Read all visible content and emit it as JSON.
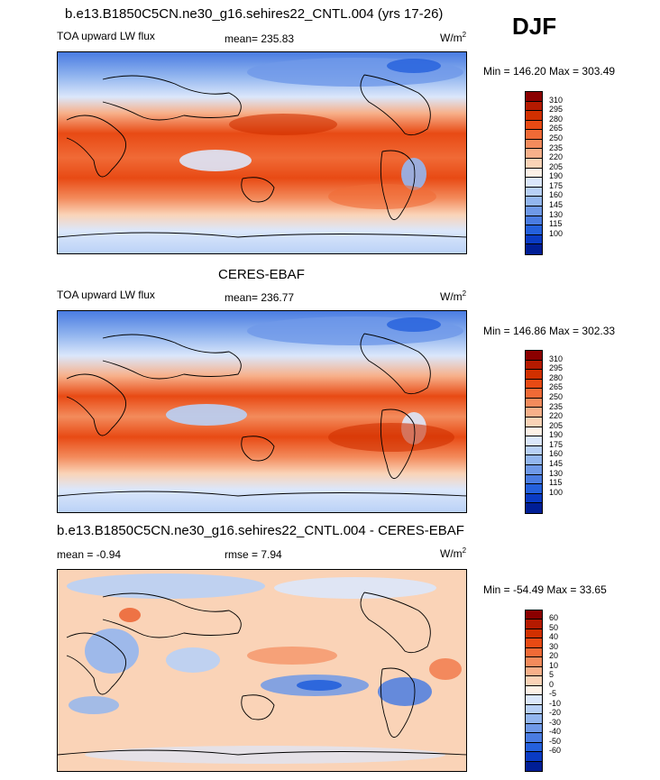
{
  "season": "DJF",
  "panels": [
    {
      "title": "b.e13.B1850C5CN.ne30_g16.sehires22_CNTL.004 (yrs 17-26)",
      "variable": "TOA upward LW flux",
      "stat1": "mean= 235.83",
      "stat2": "",
      "units_base": "W/m",
      "units_exp": "2",
      "minmax": "Min = 146.20 Max = 303.49",
      "colorbar": {
        "labels": [
          "310",
          "295",
          "280",
          "265",
          "250",
          "235",
          "220",
          "205",
          "190",
          "175",
          "160",
          "145",
          "130",
          "115",
          "100"
        ],
        "colors": [
          "#8b0000",
          "#b51a00",
          "#d13000",
          "#e84a14",
          "#f06a36",
          "#f38b5c",
          "#f7b08a",
          "#fad3b7",
          "#fdf1e6",
          "#dbe7fb",
          "#b8d0f6",
          "#93b6ef",
          "#6f99e8",
          "#4a7ce2",
          "#2460dc",
          "#0a3bc4",
          "#001e96"
        ]
      }
    },
    {
      "title": "CERES-EBAF",
      "variable": "TOA upward LW flux",
      "stat1": "mean= 236.77",
      "stat2": "",
      "units_base": "W/m",
      "units_exp": "2",
      "minmax": "Min = 146.86 Max = 302.33",
      "colorbar": {
        "labels": [
          "310",
          "295",
          "280",
          "265",
          "250",
          "235",
          "220",
          "205",
          "190",
          "175",
          "160",
          "145",
          "130",
          "115",
          "100"
        ],
        "colors": [
          "#8b0000",
          "#b51a00",
          "#d13000",
          "#e84a14",
          "#f06a36",
          "#f38b5c",
          "#f7b08a",
          "#fad3b7",
          "#fdf1e6",
          "#dbe7fb",
          "#b8d0f6",
          "#93b6ef",
          "#6f99e8",
          "#4a7ce2",
          "#2460dc",
          "#0a3bc4",
          "#001e96"
        ]
      }
    },
    {
      "title": "b.e13.B1850C5CN.ne30_g16.sehires22_CNTL.004 - CERES-EBAF",
      "variable": "mean =  -0.94",
      "stat1": "rmse =   7.94",
      "stat2": "",
      "units_base": "W/m",
      "units_exp": "2",
      "minmax": "Min = -54.49 Max =  33.65",
      "colorbar": {
        "labels": [
          "60",
          "50",
          "40",
          "30",
          "20",
          "10",
          "5",
          "0",
          "-5",
          "-10",
          "-20",
          "-30",
          "-40",
          "-50",
          "-60"
        ],
        "colors": [
          "#8b0000",
          "#b51a00",
          "#d13000",
          "#e84a14",
          "#f06a36",
          "#f38b5c",
          "#f7b08a",
          "#fad3b7",
          "#fdf1e6",
          "#dbe7fb",
          "#b8d0f6",
          "#93b6ef",
          "#6f99e8",
          "#4a7ce2",
          "#2460dc",
          "#0a3bc4",
          "#001e96"
        ]
      }
    }
  ],
  "chart_data": [
    {
      "type": "heatmap",
      "title": "b.e13.B1850C5CN.ne30_g16.sehires22_CNTL.004 (yrs 17-26)",
      "subtitle": "TOA upward LW flux",
      "units": "W/m2",
      "mean": 235.83,
      "min": 146.2,
      "max": 303.49,
      "contour_levels": [
        100,
        115,
        130,
        145,
        160,
        175,
        190,
        205,
        220,
        235,
        250,
        265,
        280,
        295,
        310
      ],
      "grid": false
    },
    {
      "type": "heatmap",
      "title": "CERES-EBAF",
      "subtitle": "TOA upward LW flux",
      "units": "W/m2",
      "mean": 236.77,
      "min": 146.86,
      "max": 302.33,
      "contour_levels": [
        100,
        115,
        130,
        145,
        160,
        175,
        190,
        205,
        220,
        235,
        250,
        265,
        280,
        295,
        310
      ],
      "grid": false
    },
    {
      "type": "heatmap",
      "title": "b.e13.B1850C5CN.ne30_g16.sehires22_CNTL.004 - CERES-EBAF",
      "units": "W/m2",
      "mean": -0.94,
      "rmse": 7.94,
      "min": -54.49,
      "max": 33.65,
      "contour_levels": [
        -60,
        -50,
        -40,
        -30,
        -20,
        -10,
        -5,
        0,
        5,
        10,
        20,
        30,
        40,
        50,
        60
      ],
      "grid": false
    }
  ]
}
